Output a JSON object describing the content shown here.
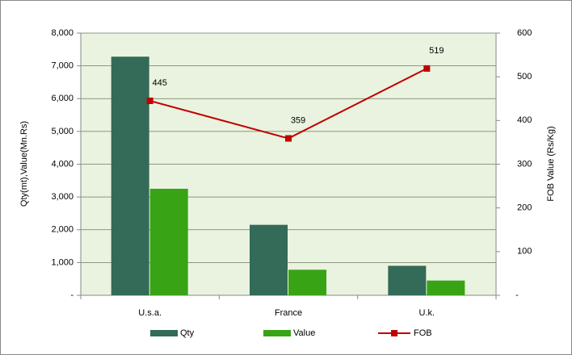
{
  "chart_data": {
    "type": "bar",
    "categories": [
      "U.s.a.",
      "France",
      "U.k."
    ],
    "series": [
      {
        "name": "Qty",
        "color": "#336b58",
        "values": [
          7280,
          2150,
          900
        ]
      },
      {
        "name": "Value",
        "color": "#38a415",
        "values": [
          3250,
          780,
          450
        ]
      },
      {
        "name": "FOB",
        "color": "#c00000",
        "type": "line",
        "axis": "y2",
        "values": [
          445,
          359,
          519
        ]
      }
    ],
    "ylabel": "Qty(mt),Value(Mn.Rs)",
    "y2label": "FOB  Value (Rs/Kg)",
    "ylim": [
      0,
      8000
    ],
    "yticks": [
      {
        "value": 0,
        "label": "-"
      },
      {
        "value": 1000,
        "label": "1,000"
      },
      {
        "value": 2000,
        "label": "2,000"
      },
      {
        "value": 3000,
        "label": "3,000"
      },
      {
        "value": 4000,
        "label": "4,000"
      },
      {
        "value": 5000,
        "label": "5,000"
      },
      {
        "value": 6000,
        "label": "6,000"
      },
      {
        "value": 7000,
        "label": "7,000"
      },
      {
        "value": 8000,
        "label": "8,000"
      }
    ],
    "y2lim": [
      0,
      600
    ],
    "y2ticks": [
      {
        "value": 0,
        "label": "-"
      },
      100,
      200,
      300,
      400,
      500,
      600
    ],
    "grid": true,
    "legend": "bottom"
  }
}
